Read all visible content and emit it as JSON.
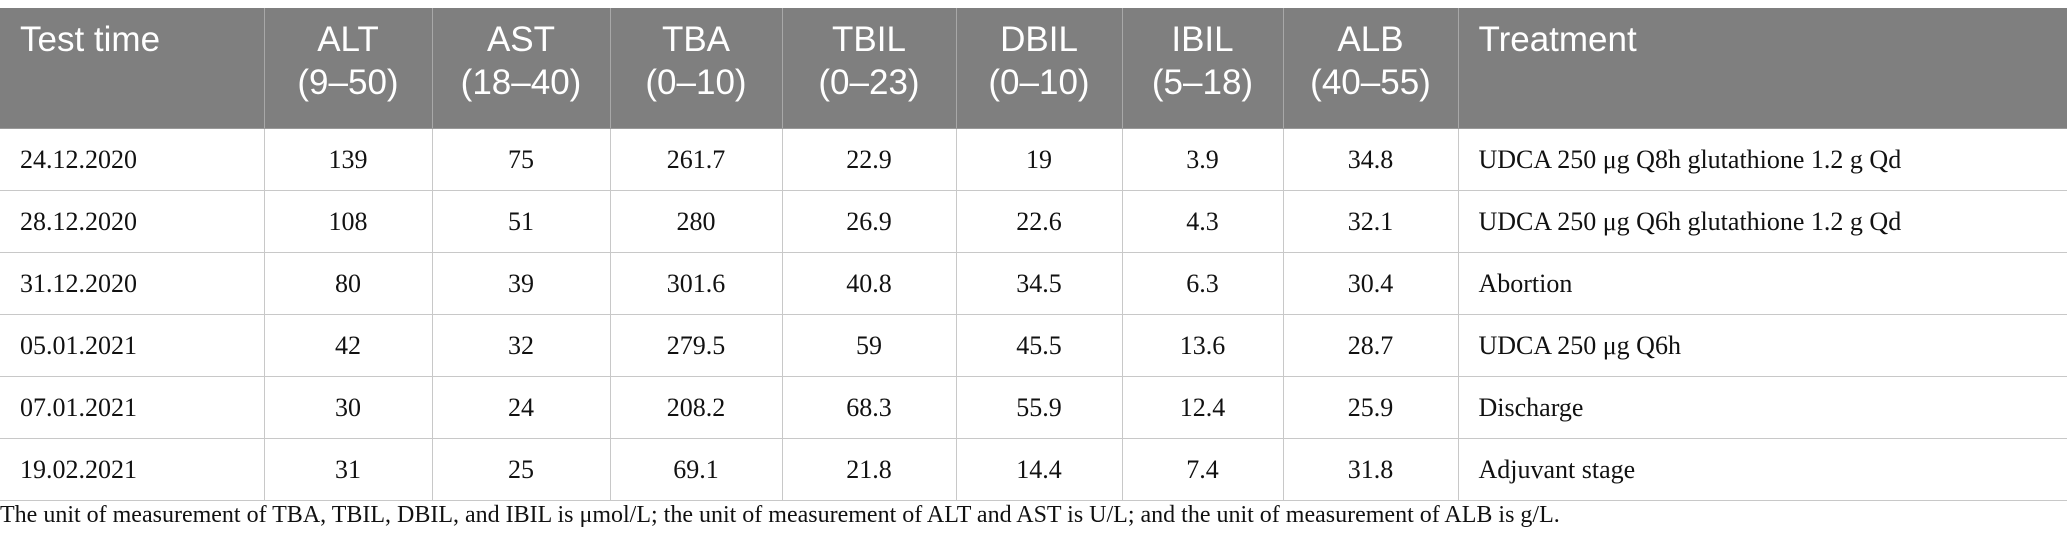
{
  "table": {
    "headers": [
      {
        "name": "Test time",
        "range": ""
      },
      {
        "name": "ALT",
        "range": "(9–50)"
      },
      {
        "name": "AST",
        "range": "(18–40)"
      },
      {
        "name": "TBA",
        "range": "(0–10)"
      },
      {
        "name": "TBIL",
        "range": "(0–23)"
      },
      {
        "name": "DBIL",
        "range": "(0–10)"
      },
      {
        "name": "IBIL",
        "range": "(5–18)"
      },
      {
        "name": "ALB",
        "range": "(40–55)"
      },
      {
        "name": "Treatment",
        "range": ""
      }
    ],
    "rows": [
      [
        "24.12.2020",
        "139",
        "75",
        "261.7",
        "22.9",
        "19",
        "3.9",
        "34.8",
        "UDCA 250 μg Q8h glutathione 1.2 g Qd"
      ],
      [
        "28.12.2020",
        "108",
        "51",
        "280",
        "26.9",
        "22.6",
        "4.3",
        "32.1",
        "UDCA 250 μg Q6h glutathione 1.2 g Qd"
      ],
      [
        "31.12.2020",
        "80",
        "39",
        "301.6",
        "40.8",
        "34.5",
        "6.3",
        "30.4",
        "Abortion"
      ],
      [
        "05.01.2021",
        "42",
        "32",
        "279.5",
        "59",
        "45.5",
        "13.6",
        "28.7",
        "UDCA 250 μg Q6h"
      ],
      [
        "07.01.2021",
        "30",
        "24",
        "208.2",
        "68.3",
        "55.9",
        "12.4",
        "25.9",
        "Discharge"
      ],
      [
        "19.02.2021",
        "31",
        "25",
        "69.1",
        "21.8",
        "14.4",
        "7.4",
        "31.8",
        "Adjuvant stage"
      ]
    ]
  },
  "footnote": "The unit of measurement of TBA, TBIL, DBIL, and IBIL is μmol/L; the unit of measurement of ALT and AST is U/L; and the unit of measurement of ALB is g/L."
}
